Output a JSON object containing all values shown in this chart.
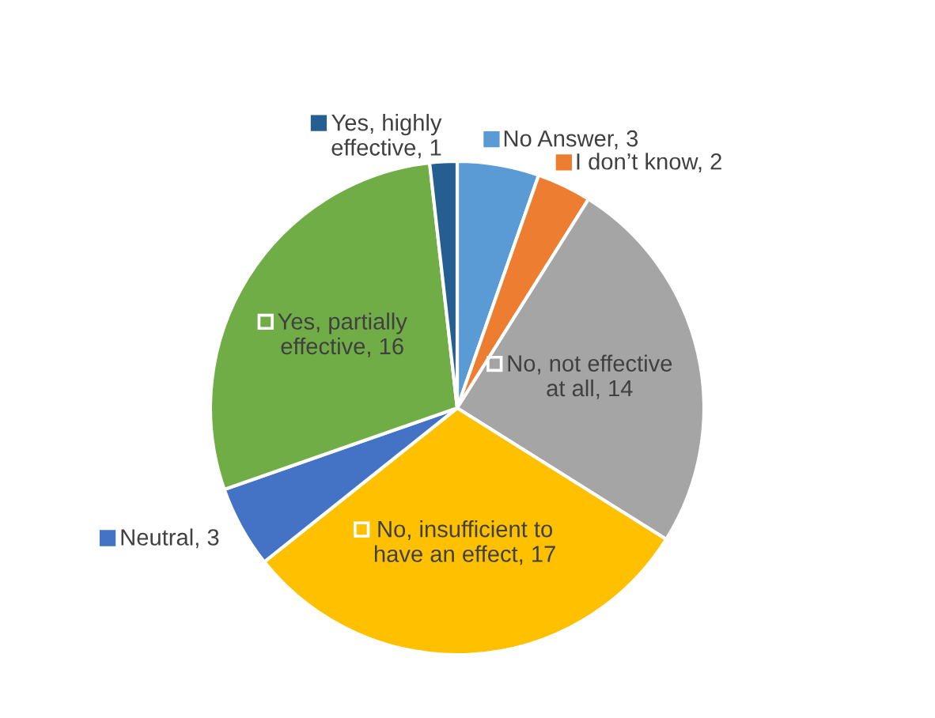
{
  "chart_data": {
    "type": "pie",
    "categories": [
      "No Answer, 3",
      "I don’t know, 2",
      "No, not effective at all, 14",
      "No, insufficient to have an effect, 17",
      "Neutral, 3",
      "Yes, partially effective, 16",
      "Yes, highly effective, 1"
    ],
    "values": [
      3,
      2,
      14,
      17,
      3,
      16,
      1
    ],
    "colors": [
      "#5b9bd5",
      "#ed7d31",
      "#a5a5a5",
      "#ffc000",
      "#4472c4",
      "#70ad47",
      "#255e91"
    ],
    "legend": "top"
  }
}
